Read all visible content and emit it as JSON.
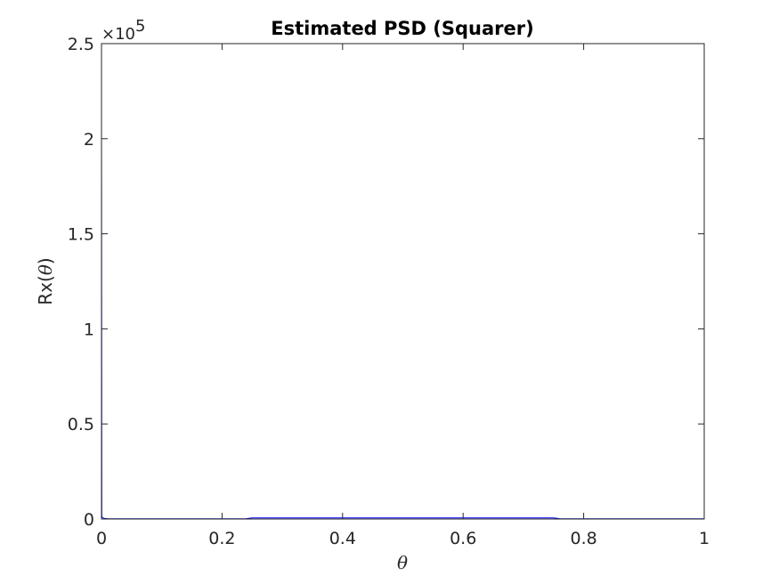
{
  "chart_data": {
    "type": "line",
    "title": "Estimated PSD (Squarer)",
    "xlabel": "θ",
    "ylabel_prefix": "Rx(",
    "ylabel_symbol": "θ",
    "ylabel_suffix": ")",
    "xlim": [
      0,
      1
    ],
    "ylim": [
      0,
      250000
    ],
    "y_exponent_base": "×10",
    "y_exponent_power": "5",
    "grid": false,
    "xticks": [
      0,
      0.2,
      0.4,
      0.6,
      0.8,
      1
    ],
    "xtick_labels": [
      "0",
      "0.2",
      "0.4",
      "0.6",
      "0.8",
      "1"
    ],
    "yticks": [
      0,
      50000,
      100000,
      150000,
      200000,
      250000
    ],
    "ytick_labels": [
      "0",
      "0.5",
      "1",
      "1.5",
      "2",
      "2.5"
    ],
    "series": [
      {
        "color": "#0000ff",
        "x": [
          0,
          0.0001,
          0.0005,
          0.001,
          0.005,
          0.01,
          0.05,
          0.1,
          0.2,
          0.24,
          0.25,
          0.3,
          0.4,
          0.5,
          0.6,
          0.7,
          0.75,
          0.76,
          0.8,
          0.9,
          1
        ],
        "y": [
          200000,
          180000,
          2000,
          800,
          300,
          150,
          120,
          100,
          100,
          150,
          600,
          600,
          600,
          600,
          600,
          600,
          600,
          150,
          100,
          100,
          100
        ]
      }
    ]
  }
}
